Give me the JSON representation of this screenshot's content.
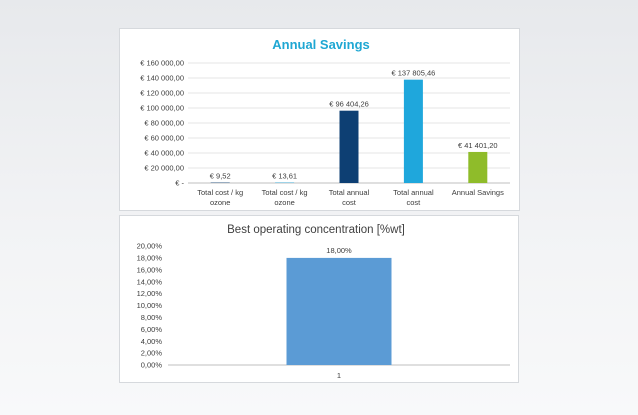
{
  "chart_data": [
    {
      "type": "bar",
      "title": "Annual Savings",
      "categories": [
        [
          "Total cost / kg",
          "ozone"
        ],
        [
          "Total cost / kg",
          "ozone"
        ],
        [
          "Total annual",
          "cost"
        ],
        [
          "Total annual",
          "cost"
        ],
        [
          "Annual Savings"
        ]
      ],
      "values": [
        9.52,
        13.61,
        96404.26,
        137805.46,
        41401.2
      ],
      "value_labels": [
        "€ 9,52",
        "€ 13,61",
        "€ 96 404,26",
        "€ 137 805,46",
        "€ 41 401,20"
      ],
      "bar_colors": [
        "#0d3f73",
        "#1b9fd4",
        "#0d3f73",
        "#1fa7dc",
        "#8fbc2a"
      ],
      "ylim": [
        0,
        160000
      ],
      "yticks": [
        0,
        20000,
        40000,
        60000,
        80000,
        100000,
        120000,
        140000,
        160000
      ],
      "ytick_labels": [
        "€ -",
        "€ 20 000,00",
        "€ 40 000,00",
        "€ 60 000,00",
        "€ 80 000,00",
        "€ 100 000,00",
        "€ 120 000,00",
        "€ 140 000,00",
        "€ 160 000,00"
      ],
      "grid": true,
      "xlabel": "",
      "ylabel": ""
    },
    {
      "type": "bar",
      "title": "Best operating concentration [%wt]",
      "categories": [
        "1"
      ],
      "values": [
        18
      ],
      "value_labels": [
        "18,00%"
      ],
      "bar_colors": [
        "#5b9bd5"
      ],
      "ylim": [
        0,
        20
      ],
      "yticks": [
        0,
        2,
        4,
        6,
        8,
        10,
        12,
        14,
        16,
        18,
        20
      ],
      "ytick_labels": [
        "0,00%",
        "2,00%",
        "4,00%",
        "6,00%",
        "8,00%",
        "10,00%",
        "12,00%",
        "14,00%",
        "16,00%",
        "18,00%",
        "20,00%"
      ],
      "grid": false,
      "xlabel": "",
      "ylabel": ""
    }
  ]
}
